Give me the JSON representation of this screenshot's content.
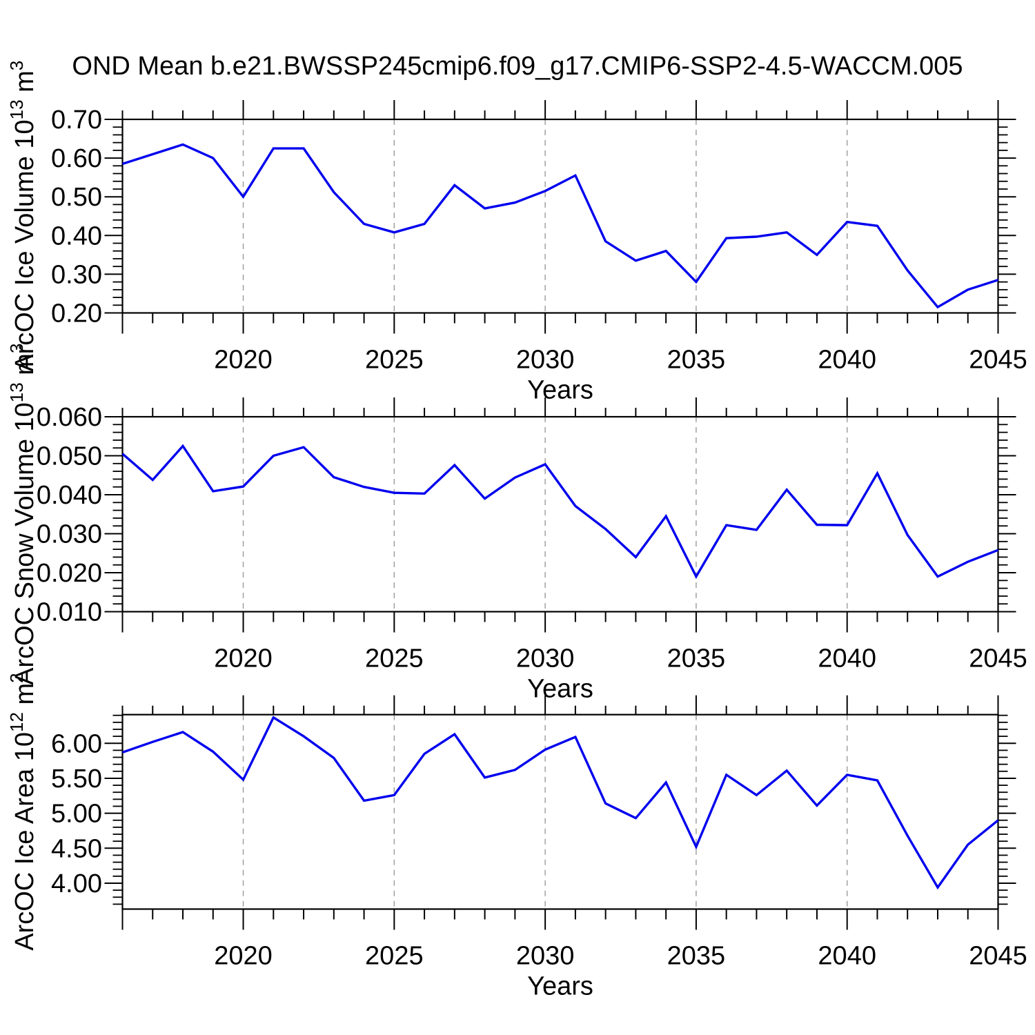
{
  "title": "OND Mean b.e21.BWSSP245cmip6.f09_g17.CMIP6-SSP2-4.5-WACCM.005",
  "line_color": "#0000ee",
  "gridline_color": "#9a9a9a",
  "axis_color": "#000000",
  "x_axis": {
    "label": "Years",
    "xlim": [
      2016,
      2045
    ],
    "major_ticks": [
      2020,
      2025,
      2030,
      2035,
      2040,
      2045
    ],
    "major_tick_labels": [
      "2020",
      "2025",
      "2030",
      "2035",
      "2040",
      "2045"
    ],
    "minor_tick_step": 1,
    "gridline_years": [
      2020,
      2025,
      2030,
      2035,
      2040
    ]
  },
  "chart_data": [
    {
      "type": "line",
      "name": "ice-volume",
      "ylabel_parts": [
        {
          "t": "ArcOC Ice Volume 10",
          "sup": false
        },
        {
          "t": "13",
          "sup": true
        },
        {
          "t": " m",
          "sup": false
        },
        {
          "t": "3",
          "sup": true
        }
      ],
      "xlabel": "Years",
      "ylim": [
        0.2,
        0.7
      ],
      "ytick_values": [
        0.2,
        0.3,
        0.4,
        0.5,
        0.6,
        0.7
      ],
      "ytick_labels": [
        "0.20",
        "0.30",
        "0.40",
        "0.50",
        "0.60",
        "0.70"
      ],
      "yminor_step": 0.02,
      "grid": true,
      "legend": "none",
      "x": [
        2016,
        2017,
        2018,
        2019,
        2020,
        2021,
        2022,
        2023,
        2024,
        2025,
        2026,
        2027,
        2028,
        2029,
        2030,
        2031,
        2032,
        2033,
        2034,
        2035,
        2036,
        2037,
        2038,
        2039,
        2040,
        2041,
        2042,
        2043,
        2044,
        2045
      ],
      "values": [
        0.585,
        0.61,
        0.635,
        0.6,
        0.5,
        0.625,
        0.625,
        0.512,
        0.43,
        0.408,
        0.43,
        0.53,
        0.47,
        0.485,
        0.515,
        0.555,
        0.385,
        0.335,
        0.36,
        0.28,
        0.393,
        0.397,
        0.408,
        0.35,
        0.435,
        0.425,
        0.31,
        0.215,
        0.26,
        0.285
      ]
    },
    {
      "type": "line",
      "name": "snow-volume",
      "ylabel_parts": [
        {
          "t": "ArcOC Snow Volume 10",
          "sup": false
        },
        {
          "t": "13",
          "sup": true
        },
        {
          "t": " m",
          "sup": false
        },
        {
          "t": "3",
          "sup": true
        }
      ],
      "xlabel": "Years",
      "ylim": [
        0.01,
        0.06
      ],
      "ytick_values": [
        0.01,
        0.02,
        0.03,
        0.04,
        0.05,
        0.06
      ],
      "ytick_labels": [
        "0.010",
        "0.020",
        "0.030",
        "0.040",
        "0.050",
        "0.060"
      ],
      "yminor_step": 0.002,
      "grid": true,
      "legend": "none",
      "x": [
        2016,
        2017,
        2018,
        2019,
        2020,
        2021,
        2022,
        2023,
        2024,
        2025,
        2026,
        2027,
        2028,
        2029,
        2030,
        2031,
        2032,
        2033,
        2034,
        2035,
        2036,
        2037,
        2038,
        2039,
        2040,
        2041,
        2042,
        2043,
        2044,
        2045
      ],
      "values": [
        0.0505,
        0.0438,
        0.0525,
        0.0409,
        0.0421,
        0.05,
        0.0522,
        0.0445,
        0.042,
        0.0405,
        0.0403,
        0.0476,
        0.039,
        0.0444,
        0.0478,
        0.0371,
        0.0312,
        0.024,
        0.0345,
        0.019,
        0.0322,
        0.031,
        0.0413,
        0.0323,
        0.0322,
        0.0455,
        0.0297,
        0.019,
        0.0228,
        0.0258
      ]
    },
    {
      "type": "line",
      "name": "ice-area",
      "ylabel_parts": [
        {
          "t": "ArcOC Ice Area 10",
          "sup": false
        },
        {
          "t": "12",
          "sup": true
        },
        {
          "t": " m",
          "sup": false
        },
        {
          "t": "2",
          "sup": true
        }
      ],
      "xlabel": "Years",
      "ylim": [
        3.63,
        6.41
      ],
      "ytick_values": [
        4.0,
        4.5,
        5.0,
        5.5,
        6.0
      ],
      "ytick_labels": [
        "4.00",
        "4.50",
        "5.00",
        "5.50",
        "6.00"
      ],
      "yminor_step": 0.1,
      "grid": true,
      "legend": "none",
      "x": [
        2016,
        2017,
        2018,
        2019,
        2020,
        2021,
        2022,
        2023,
        2024,
        2025,
        2026,
        2027,
        2028,
        2029,
        2030,
        2031,
        2032,
        2033,
        2034,
        2035,
        2036,
        2037,
        2038,
        2039,
        2040,
        2041,
        2042,
        2043,
        2044,
        2045
      ],
      "values": [
        5.87,
        6.02,
        6.16,
        5.88,
        5.48,
        6.37,
        6.1,
        5.79,
        5.18,
        5.26,
        5.85,
        6.13,
        5.51,
        5.62,
        5.91,
        6.09,
        5.14,
        4.93,
        5.44,
        4.52,
        5.55,
        5.26,
        5.61,
        5.11,
        5.55,
        5.47,
        4.68,
        3.94,
        4.55,
        4.9
      ]
    }
  ]
}
